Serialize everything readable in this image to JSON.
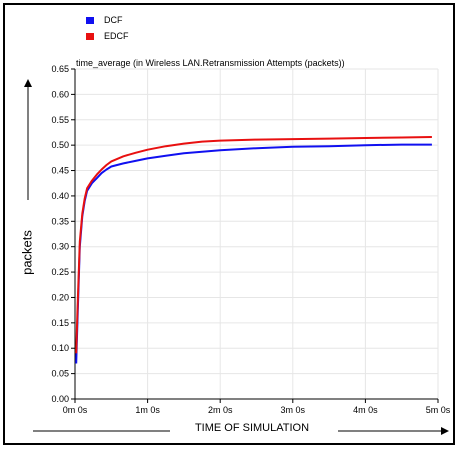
{
  "chart_data": {
    "type": "line",
    "title": "time_average (in Wireless LAN.Retransmission Attempts (packets))",
    "xlabel": "TIME OF SIMULATION",
    "ylabel": "packets",
    "xlim": [
      0,
      300
    ],
    "ylim": [
      0,
      0.65
    ],
    "x_unit": "seconds",
    "x_ticks": [
      {
        "value": 0,
        "label": "0m 0s"
      },
      {
        "value": 60,
        "label": "1m 0s"
      },
      {
        "value": 120,
        "label": "2m 0s"
      },
      {
        "value": 180,
        "label": "3m 0s"
      },
      {
        "value": 240,
        "label": "4m 0s"
      },
      {
        "value": 300,
        "label": "5m 0s"
      }
    ],
    "y_ticks": [
      "0.00",
      "0.05",
      "0.10",
      "0.15",
      "0.20",
      "0.25",
      "0.30",
      "0.35",
      "0.40",
      "0.45",
      "0.50",
      "0.55",
      "0.60",
      "0.65"
    ],
    "grid": true,
    "legend_position": "top-left",
    "series": [
      {
        "name": "DCF",
        "color": "#1010f0",
        "x": [
          1,
          2,
          4,
          6,
          8,
          10,
          14,
          18,
          22,
          26,
          30,
          40,
          50,
          60,
          75,
          90,
          105,
          120,
          150,
          180,
          210,
          240,
          270,
          295
        ],
        "y": [
          0.07,
          0.15,
          0.3,
          0.36,
          0.39,
          0.41,
          0.425,
          0.435,
          0.445,
          0.452,
          0.458,
          0.464,
          0.469,
          0.474,
          0.479,
          0.484,
          0.487,
          0.49,
          0.494,
          0.497,
          0.498,
          0.5,
          0.501,
          0.501
        ]
      },
      {
        "name": "EDCF",
        "color": "#e81010",
        "x": [
          1,
          2,
          4,
          6,
          8,
          10,
          14,
          18,
          22,
          26,
          30,
          40,
          50,
          60,
          75,
          90,
          105,
          120,
          150,
          180,
          210,
          240,
          270,
          295
        ],
        "y": [
          0.09,
          0.17,
          0.31,
          0.365,
          0.395,
          0.415,
          0.43,
          0.442,
          0.452,
          0.461,
          0.468,
          0.478,
          0.485,
          0.491,
          0.498,
          0.503,
          0.507,
          0.509,
          0.511,
          0.512,
          0.513,
          0.514,
          0.515,
          0.516
        ]
      }
    ]
  }
}
